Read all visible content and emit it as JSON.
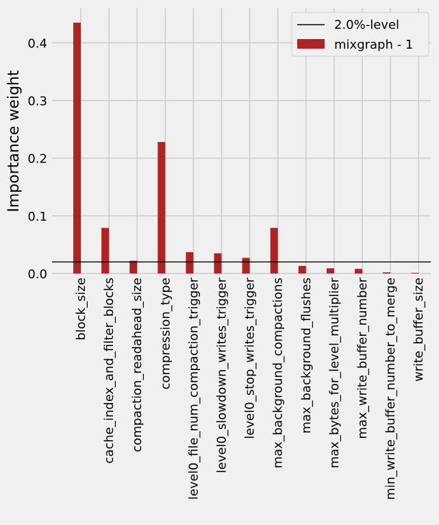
{
  "chart_data": {
    "type": "bar",
    "title": "",
    "xlabel": "",
    "ylabel": "Importance weight",
    "ylim": [
      0,
      0.46
    ],
    "yticks": [
      0.0,
      0.1,
      0.2,
      0.3,
      0.4
    ],
    "ytick_labels": [
      "0.0",
      "0.1",
      "0.2",
      "0.3",
      "0.4"
    ],
    "grid": true,
    "legend_position": "top-right",
    "categories": [
      "block_size",
      "cache_index_and_filter_blocks",
      "compaction_readahead_size",
      "compression_type",
      "level0_file_num_compaction_trigger",
      "level0_slowdown_writes_trigger",
      "level0_stop_writes_trigger",
      "max_background_compactions",
      "max_background_flushes",
      "max_bytes_for_level_multiplier",
      "max_write_buffer_number",
      "min_write_buffer_number_to_merge",
      "write_buffer_size"
    ],
    "series": [
      {
        "name": "mixgraph - 1",
        "color": "#b22222",
        "values": [
          0.435,
          0.079,
          0.022,
          0.228,
          0.037,
          0.035,
          0.027,
          0.079,
          0.013,
          0.009,
          0.008,
          0.002,
          0.001
        ]
      }
    ],
    "reference_line": {
      "name": "2.0%-level",
      "value": 0.02,
      "color": "#000000"
    }
  }
}
